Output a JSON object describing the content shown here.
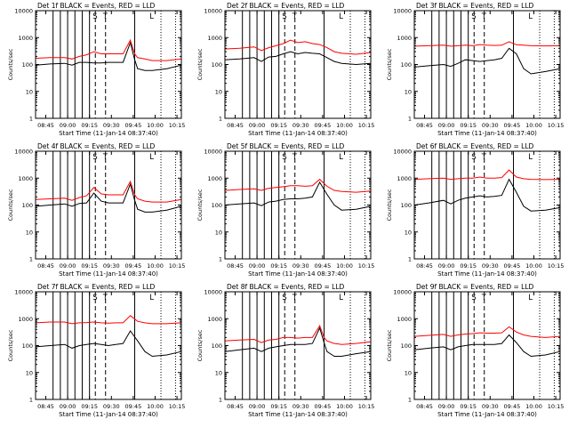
{
  "figure": {
    "x_tick_labels": [
      "08:45",
      "09:00",
      "09:15",
      "09:30",
      "09:45",
      "10:00",
      "10:15"
    ],
    "x_label": "Start Time (11-Jan-14 08:37:40)",
    "y_label": "Counts/sec",
    "y_tick_labels": [
      "1",
      "10",
      "100",
      "1000",
      "10000"
    ],
    "colors": {
      "events": "#000000",
      "lld": "#ff0000",
      "axes": "#000000"
    }
  },
  "chart_data": [
    {
      "type": "line",
      "detector": "1f",
      "title": "Det 1f BLACK = Events, RED = LLD",
      "x_range": [
        "08:37:40",
        "10:17:40"
      ],
      "ylim": [
        1,
        10000
      ],
      "yscale": "log",
      "x_minutes": [
        0,
        10,
        20,
        25,
        30,
        35,
        40,
        45,
        50,
        55,
        60,
        65,
        68,
        70,
        75,
        80,
        90,
        100
      ],
      "series": [
        {
          "name": "Events",
          "values": [
            95,
            105,
            110,
            95,
            120,
            120,
            115,
            115,
            120,
            120,
            120,
            650,
            150,
            70,
            60,
            60,
            70,
            95
          ]
        },
        {
          "name": "LLD",
          "values": [
            170,
            180,
            180,
            160,
            200,
            230,
            300,
            250,
            250,
            250,
            250,
            800,
            250,
            180,
            160,
            140,
            140,
            160
          ]
        }
      ],
      "markers": [
        {
          "label": "S",
          "minute": 41
        },
        {
          "label": "T",
          "minute": 48
        },
        {
          "label": "L",
          "minute": 80
        }
      ]
    },
    {
      "type": "line",
      "detector": "2f",
      "title": "Det 2f BLACK = Events, RED = LLD",
      "x_range": [
        "08:37:40",
        "10:17:40"
      ],
      "ylim": [
        1,
        10000
      ],
      "yscale": "log",
      "x_minutes": [
        0,
        10,
        20,
        25,
        30,
        35,
        40,
        45,
        50,
        55,
        60,
        65,
        70,
        75,
        80,
        90,
        100
      ],
      "series": [
        {
          "name": "Events",
          "values": [
            150,
            160,
            180,
            130,
            190,
            200,
            250,
            300,
            250,
            280,
            260,
            250,
            180,
            130,
            110,
            100,
            110
          ]
        },
        {
          "name": "LLD",
          "values": [
            380,
            400,
            450,
            330,
            420,
            500,
            600,
            800,
            650,
            700,
            600,
            550,
            420,
            300,
            260,
            240,
            280
          ]
        }
      ],
      "markers": [
        {
          "label": "S",
          "minute": 41
        },
        {
          "label": "T",
          "minute": 48
        },
        {
          "label": "L",
          "minute": 80
        }
      ]
    },
    {
      "type": "line",
      "detector": "3f",
      "title": "Det 3f BLACK = Events, RED = LLD",
      "x_range": [
        "08:37:40",
        "10:17:40"
      ],
      "ylim": [
        1,
        10000
      ],
      "yscale": "log",
      "x_minutes": [
        0,
        10,
        20,
        25,
        30,
        35,
        40,
        45,
        50,
        55,
        60,
        65,
        70,
        75,
        80,
        90,
        100
      ],
      "series": [
        {
          "name": "Events",
          "values": [
            80,
            90,
            100,
            85,
            110,
            150,
            140,
            130,
            140,
            150,
            170,
            400,
            250,
            70,
            45,
            55,
            70
          ]
        },
        {
          "name": "LLD",
          "values": [
            480,
            500,
            520,
            480,
            500,
            520,
            500,
            550,
            520,
            510,
            520,
            700,
            540,
            520,
            500,
            490,
            500
          ]
        }
      ],
      "markers": [
        {
          "label": "S",
          "minute": 41
        },
        {
          "label": "T",
          "minute": 48
        },
        {
          "label": "L",
          "minute": 80
        }
      ]
    },
    {
      "type": "line",
      "detector": "4f",
      "title": "Det 4f BLACK = Events, RED = LLD",
      "x_range": [
        "08:37:40",
        "10:17:40"
      ],
      "ylim": [
        1,
        10000
      ],
      "yscale": "log",
      "x_minutes": [
        0,
        10,
        20,
        25,
        30,
        35,
        40,
        45,
        50,
        55,
        60,
        65,
        68,
        70,
        75,
        80,
        90,
        100
      ],
      "series": [
        {
          "name": "Events",
          "values": [
            90,
            100,
            110,
            90,
            115,
            120,
            280,
            140,
            120,
            120,
            120,
            600,
            150,
            70,
            55,
            55,
            65,
            90
          ]
        },
        {
          "name": "LLD",
          "values": [
            160,
            170,
            180,
            150,
            190,
            220,
            450,
            260,
            240,
            240,
            240,
            750,
            240,
            170,
            140,
            130,
            130,
            160
          ]
        }
      ],
      "markers": [
        {
          "label": "S",
          "minute": 41
        },
        {
          "label": "T",
          "minute": 48
        },
        {
          "label": "L",
          "minute": 80
        }
      ]
    },
    {
      "type": "line",
      "detector": "5f",
      "title": "Det 5f BLACK = Events, RED = LLD",
      "x_range": [
        "08:37:40",
        "10:17:40"
      ],
      "ylim": [
        1,
        10000
      ],
      "yscale": "log",
      "x_minutes": [
        0,
        10,
        20,
        25,
        30,
        35,
        40,
        45,
        50,
        55,
        60,
        65,
        70,
        75,
        80,
        90,
        100
      ],
      "series": [
        {
          "name": "Events",
          "values": [
            100,
            110,
            120,
            95,
            130,
            140,
            160,
            170,
            170,
            180,
            200,
            700,
            250,
            100,
            65,
            70,
            90
          ]
        },
        {
          "name": "LLD",
          "values": [
            350,
            380,
            400,
            350,
            420,
            450,
            480,
            520,
            520,
            500,
            520,
            900,
            500,
            350,
            320,
            300,
            330
          ]
        }
      ],
      "markers": [
        {
          "label": "S",
          "minute": 41
        },
        {
          "label": "T",
          "minute": 48
        },
        {
          "label": "L",
          "minute": 80
        }
      ]
    },
    {
      "type": "line",
      "detector": "6f",
      "title": "Det 6f BLACK = Events, RED = LLD",
      "x_range": [
        "08:37:40",
        "10:17:40"
      ],
      "ylim": [
        1,
        10000
      ],
      "yscale": "log",
      "x_minutes": [
        0,
        10,
        20,
        25,
        30,
        35,
        40,
        45,
        50,
        55,
        60,
        65,
        70,
        75,
        80,
        90,
        100
      ],
      "series": [
        {
          "name": "Events",
          "values": [
            100,
            120,
            150,
            110,
            150,
            180,
            200,
            220,
            200,
            210,
            230,
            900,
            300,
            90,
            60,
            65,
            80
          ]
        },
        {
          "name": "LLD",
          "values": [
            900,
            950,
            1000,
            900,
            950,
            1000,
            1000,
            1100,
            1000,
            1000,
            1050,
            2000,
            1100,
            950,
            900,
            880,
            900
          ]
        }
      ],
      "markers": [
        {
          "label": "S",
          "minute": 41
        },
        {
          "label": "T",
          "minute": 48
        },
        {
          "label": "L",
          "minute": 80
        }
      ]
    },
    {
      "type": "line",
      "detector": "7f",
      "title": "Det 7f BLACK = Events, RED = LLD",
      "x_range": [
        "08:37:40",
        "10:17:40"
      ],
      "ylim": [
        1,
        10000
      ],
      "yscale": "log",
      "x_minutes": [
        0,
        10,
        20,
        25,
        30,
        35,
        40,
        45,
        50,
        55,
        60,
        65,
        70,
        75,
        80,
        90,
        100
      ],
      "series": [
        {
          "name": "Events",
          "values": [
            90,
            100,
            110,
            80,
            100,
            110,
            120,
            110,
            100,
            110,
            120,
            350,
            150,
            60,
            40,
            45,
            60
          ]
        },
        {
          "name": "LLD",
          "values": [
            700,
            750,
            750,
            650,
            700,
            720,
            750,
            700,
            680,
            700,
            700,
            1300,
            800,
            700,
            650,
            650,
            700
          ]
        }
      ],
      "markers": [
        {
          "label": "S",
          "minute": 41
        },
        {
          "label": "T",
          "minute": 48
        },
        {
          "label": "L",
          "minute": 80
        }
      ]
    },
    {
      "type": "line",
      "detector": "8f",
      "title": "Det 8f BLACK = Events, RED = LLD",
      "x_range": [
        "08:37:40",
        "10:17:40"
      ],
      "ylim": [
        1,
        10000
      ],
      "yscale": "log",
      "x_minutes": [
        0,
        10,
        20,
        25,
        30,
        35,
        40,
        45,
        50,
        55,
        60,
        65,
        68,
        70,
        75,
        80,
        90,
        100
      ],
      "series": [
        {
          "name": "Events",
          "values": [
            60,
            70,
            80,
            60,
            80,
            90,
            100,
            110,
            110,
            110,
            120,
            450,
            130,
            60,
            40,
            40,
            50,
            60
          ]
        },
        {
          "name": "LLD",
          "values": [
            150,
            160,
            170,
            130,
            160,
            170,
            200,
            200,
            190,
            200,
            200,
            550,
            200,
            150,
            120,
            110,
            120,
            140
          ]
        }
      ],
      "markers": [
        {
          "label": "S",
          "minute": 41
        },
        {
          "label": "T",
          "minute": 48
        },
        {
          "label": "L",
          "minute": 80
        }
      ]
    },
    {
      "type": "line",
      "detector": "9f",
      "title": "Det 9f BLACK = Events, RED = LLD",
      "x_range": [
        "08:37:40",
        "10:17:40"
      ],
      "ylim": [
        1,
        10000
      ],
      "yscale": "log",
      "x_minutes": [
        0,
        10,
        20,
        25,
        30,
        35,
        40,
        45,
        50,
        55,
        60,
        65,
        70,
        75,
        80,
        90,
        100
      ],
      "series": [
        {
          "name": "Events",
          "values": [
            70,
            80,
            90,
            70,
            90,
            100,
            110,
            110,
            110,
            110,
            120,
            250,
            130,
            60,
            40,
            45,
            60
          ]
        },
        {
          "name": "LLD",
          "values": [
            220,
            240,
            260,
            220,
            250,
            270,
            280,
            300,
            290,
            290,
            300,
            500,
            320,
            250,
            220,
            200,
            220
          ]
        }
      ],
      "markers": [
        {
          "label": "S",
          "minute": 41
        },
        {
          "label": "T",
          "minute": 48
        },
        {
          "label": "L",
          "minute": 80
        }
      ]
    }
  ]
}
